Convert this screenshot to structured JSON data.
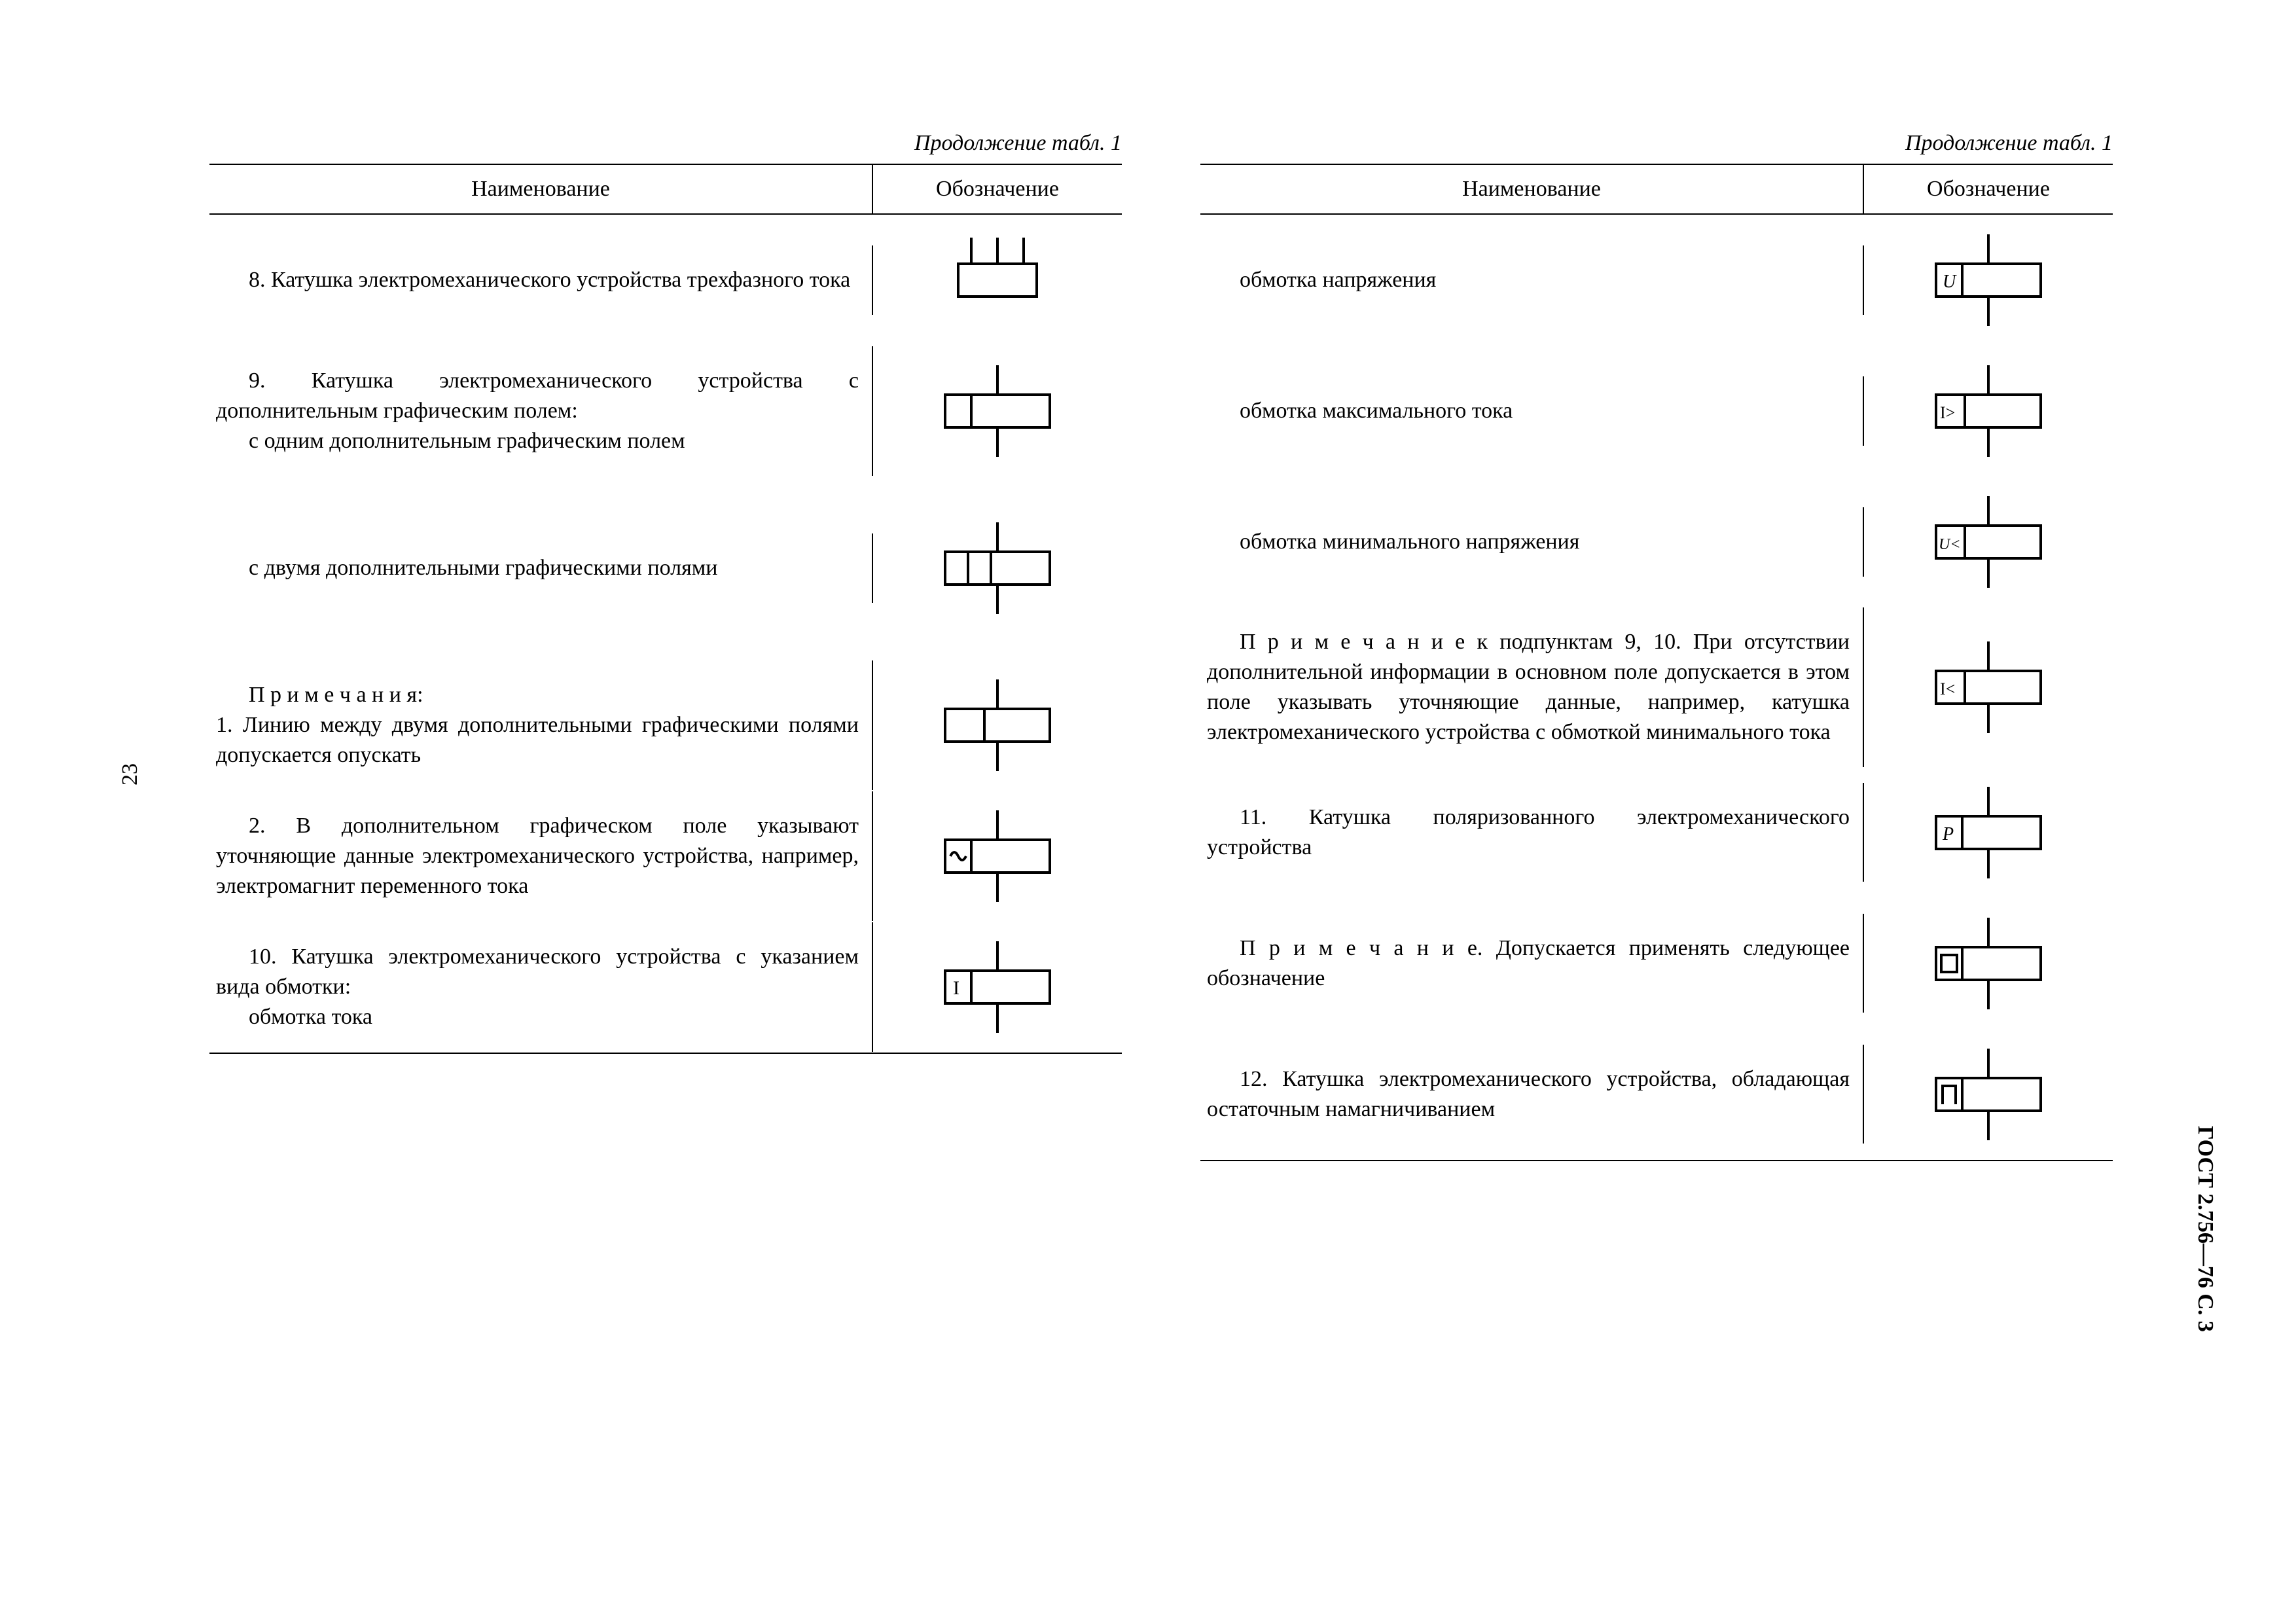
{
  "caption": "Продолжение табл. 1",
  "header": {
    "name": "Наименование",
    "symbol": "Обозначение"
  },
  "pageNumLeft": "23",
  "sideLabel": "ГОСТ 2.756—76 С. 3",
  "stroke": "#000000",
  "bg": "#ffffff",
  "left": [
    {
      "text": [
        "8. Катушка электромеханического устройства трехфазного тока"
      ],
      "sym": "threePhase",
      "indent": true
    },
    {
      "text": [
        "9. Катушка электромеханического устройства с дополнительным графическим полем:",
        "с одним дополнительным графическим полем"
      ],
      "sym": "oneField",
      "indent": true,
      "indent2": true
    },
    {
      "text": [
        "с двумя дополнительными графическими полями"
      ],
      "sym": "twoFields",
      "indent": true,
      "tall": true
    },
    {
      "text": [
        "П р и м е ч а н и я:",
        "1. Линию между двумя дополнительными графическими полями допускается опускать"
      ],
      "sym": "twoFieldsNoLine",
      "indent": true
    },
    {
      "text": [
        "2. В дополнительном графическом поле указывают уточняющие данные электромеханического устройства, например, электромагнит переменного тока"
      ],
      "sym": "acField",
      "indent": true
    },
    {
      "text": [
        "10. Катушка электромеханического устройства с указанием вида обмотки:",
        "обмотка тока"
      ],
      "sym": "labelI",
      "indent": true,
      "indent2": true
    }
  ],
  "right": [
    {
      "text": [
        "обмотка напряжения"
      ],
      "sym": "labelU",
      "indent": true
    },
    {
      "text": [
        "обмотка максимального тока"
      ],
      "sym": "labelIgt",
      "indent": true
    },
    {
      "text": [
        "обмотка минимального напряжения"
      ],
      "sym": "labelUlt",
      "indent": true
    },
    {
      "text": [
        "П р и м е ч а н и е к подпунктам 9, 10. При отсутствии дополнительной информации в основном поле допускается в этом поле указывать уточняющие данные, например, катушка электромеханического устройства с обмоткой минимального тока"
      ],
      "sym": "labelIlt",
      "indent": true
    },
    {
      "text": [
        "11. Катушка поляризованного электромеханического устройства"
      ],
      "sym": "labelP",
      "indent": true
    },
    {
      "text": [
        "П р и м е ч а н и е. Допускается применять следующее обозначение"
      ],
      "sym": "polSquare",
      "indent": true
    },
    {
      "text": [
        "12. Катушка электромеханического устройства, обладающая остаточным намагничиванием"
      ],
      "sym": "hysteresis",
      "indent": true
    }
  ]
}
